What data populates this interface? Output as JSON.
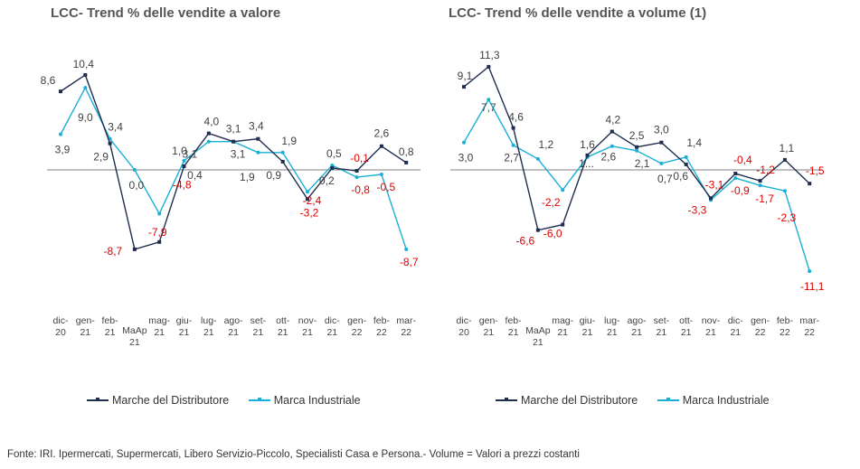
{
  "colors": {
    "distributore": "#1f2d4e",
    "industriale": "#1ab0d6",
    "negative_label": "#dd0000",
    "positive_label": "#404040",
    "baseline": "#808080"
  },
  "chart_data": [
    {
      "type": "line",
      "title": "LCC- Trend % delle vendite a valore",
      "categories": [
        [
          "dic-",
          "20"
        ],
        [
          "gen-",
          "21"
        ],
        [
          "feb-",
          "21"
        ],
        [
          "MaAp",
          "21"
        ],
        [
          "mag-",
          "21"
        ],
        [
          "giu-",
          "21"
        ],
        [
          "lug-",
          "21"
        ],
        [
          "ago-",
          "21"
        ],
        [
          "set-",
          "21"
        ],
        [
          "ott-",
          "21"
        ],
        [
          "nov-",
          "21"
        ],
        [
          "dic-",
          "21"
        ],
        [
          "gen-",
          "22"
        ],
        [
          "feb-",
          "22"
        ],
        [
          "mar-",
          "22"
        ]
      ],
      "series": [
        {
          "name": "Marche del Distributore",
          "values": [
            8.6,
            10.4,
            2.9,
            -8.7,
            -7.9,
            0.4,
            4.0,
            3.1,
            3.4,
            0.9,
            -3.2,
            0.2,
            -0.1,
            2.6,
            0.8
          ],
          "labels": [
            "8,6",
            "10,4",
            "2,9",
            "-8,7",
            "-7,9",
            "0,4",
            "4,0",
            "3,1",
            "3,4",
            "0,9",
            "-3,2",
            "0,2",
            "-0,1",
            "2,6",
            "0,8"
          ]
        },
        {
          "name": "Marca Industriale",
          "values": [
            3.9,
            9.0,
            3.4,
            0.0,
            -4.8,
            1.0,
            3.1,
            3.1,
            1.9,
            1.9,
            -2.4,
            0.5,
            -0.8,
            -0.5,
            -8.7
          ],
          "labels": [
            "3,9",
            "9,0",
            "3,4",
            "0,0",
            "-4,8",
            "1,0",
            "3,1",
            "3,1",
            "1,9",
            "1,9",
            "-2,4",
            "0,5",
            "-0,8",
            "-0,5",
            "-8,7"
          ]
        }
      ],
      "ylim": [
        -12,
        13
      ],
      "grid": false,
      "legend": "bottom"
    },
    {
      "type": "line",
      "title": "LCC- Trend % delle vendite a volume (1)",
      "categories": [
        [
          "dic-",
          "20"
        ],
        [
          "gen-",
          "21"
        ],
        [
          "feb-",
          "21"
        ],
        [
          "MaAp",
          "21"
        ],
        [
          "mag-",
          "21"
        ],
        [
          "giu-",
          "21"
        ],
        [
          "lug-",
          "21"
        ],
        [
          "ago-",
          "21"
        ],
        [
          "set-",
          "21"
        ],
        [
          "ott-",
          "21"
        ],
        [
          "nov-",
          "21"
        ],
        [
          "dic-",
          "21"
        ],
        [
          "gen-",
          "22"
        ],
        [
          "feb-",
          "22"
        ],
        [
          "mar-",
          "22"
        ]
      ],
      "series": [
        {
          "name": "Marche del Distributore",
          "values": [
            9.1,
            11.3,
            4.6,
            -6.6,
            -6.0,
            1.6,
            4.2,
            2.5,
            3.0,
            0.6,
            -3.1,
            -0.4,
            -1.2,
            1.1,
            -1.5
          ],
          "labels": [
            "9,1",
            "11,3",
            "4,6",
            "-6,6",
            "-6,0",
            "1,6",
            "4,2",
            "2,5",
            "3,0",
            "0,6",
            "-3,1",
            "-0,4",
            "-1,2",
            "1,1",
            "-1,5"
          ]
        },
        {
          "name": "Marca Industriale",
          "values": [
            3.0,
            7.7,
            2.7,
            1.2,
            -2.2,
            1.4,
            2.6,
            2.1,
            0.7,
            1.4,
            -3.3,
            -0.9,
            -1.7,
            -2.3,
            -11.1
          ],
          "labels": [
            "3,0",
            "7,7",
            "2,7",
            "1,2",
            "-2,2",
            "1...",
            "2,6",
            "2,1",
            "0,7",
            "1,4",
            "-3,3",
            "-0,9",
            "-1,7",
            "-2,3",
            "-11,1"
          ]
        }
      ],
      "ylim": [
        -12,
        13
      ],
      "grid": false,
      "legend": "bottom"
    }
  ],
  "legend_items": [
    "Marche del Distributore",
    "Marca Industriale"
  ],
  "source_note": "Fonte: IRI. Ipermercati, Supermercati, Libero Servizio-Piccolo, Specialisti Casa e Persona.- Volume = Valori a prezzi costanti"
}
